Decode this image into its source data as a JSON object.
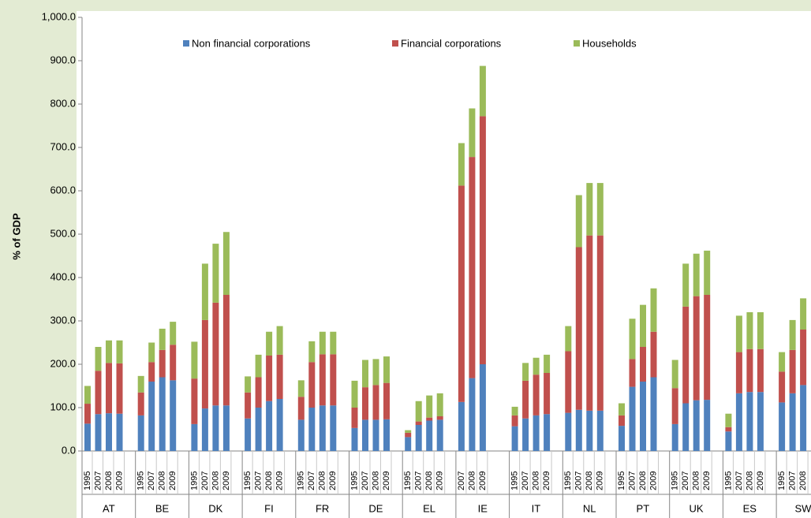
{
  "chart_data": {
    "type": "stacked_bar",
    "y_label": "% of GDP",
    "ylim": [
      0,
      1000
    ],
    "yticks": [
      {
        "value": 0,
        "label": "0.0"
      },
      {
        "value": 100,
        "label": "100.0"
      },
      {
        "value": 200,
        "label": "200.0"
      },
      {
        "value": 300,
        "label": "300.0"
      },
      {
        "value": 400,
        "label": "400.0"
      },
      {
        "value": 500,
        "label": "500.0"
      },
      {
        "value": 600,
        "label": "600.0"
      },
      {
        "value": 700,
        "label": "700.0"
      },
      {
        "value": 800,
        "label": "800.0"
      },
      {
        "value": 900,
        "label": "900.0"
      },
      {
        "value": 1000,
        "label": "1,000.0"
      }
    ],
    "groups": [
      {
        "name": "AT",
        "years": [
          "1995",
          "2007",
          "2008",
          "2009"
        ]
      },
      {
        "name": "BE",
        "years": [
          "1995",
          "2007",
          "2008",
          "2009"
        ]
      },
      {
        "name": "DK",
        "years": [
          "1995",
          "2007",
          "2008",
          "2009"
        ]
      },
      {
        "name": "FI",
        "years": [
          "1995",
          "2007",
          "2008",
          "2009"
        ]
      },
      {
        "name": "FR",
        "years": [
          "1995",
          "2007",
          "2008",
          "2009"
        ]
      },
      {
        "name": "DE",
        "years": [
          "1995",
          "2007",
          "2008",
          "2009"
        ]
      },
      {
        "name": "EL",
        "years": [
          "1995",
          "2007",
          "2008",
          "2009"
        ]
      },
      {
        "name": "IE",
        "years": [
          "2007",
          "2008",
          "2009"
        ]
      },
      {
        "name": "IT",
        "years": [
          "1995",
          "2007",
          "2008",
          "2009"
        ]
      },
      {
        "name": "NL",
        "years": [
          "1995",
          "2007",
          "2008",
          "2009"
        ]
      },
      {
        "name": "PT",
        "years": [
          "1995",
          "2007",
          "2008",
          "2009"
        ]
      },
      {
        "name": "UK",
        "years": [
          "1995",
          "2007",
          "2008",
          "2009"
        ]
      },
      {
        "name": "ES",
        "years": [
          "1995",
          "2007",
          "2008",
          "2009"
        ]
      },
      {
        "name": "SW",
        "years": [
          "1995",
          "2007",
          "2008"
        ]
      }
    ],
    "series": [
      {
        "name": "Non financial corporations",
        "color": "#4f81bd",
        "values": [
          63,
          85,
          87,
          86,
          82,
          160,
          170,
          163,
          62,
          98,
          105,
          105,
          75,
          100,
          115,
          120,
          72,
          100,
          105,
          105,
          53,
          72,
          72,
          73,
          32,
          60,
          70,
          72,
          113,
          168,
          200,
          57,
          75,
          82,
          85,
          88,
          95,
          93,
          93,
          58,
          148,
          160,
          170,
          62,
          110,
          117,
          118,
          45,
          133,
          136,
          136,
          112,
          133,
          152
        ]
      },
      {
        "name": "Financial corporations",
        "color": "#c0504d",
        "values": [
          46,
          100,
          116,
          116,
          53,
          45,
          63,
          82,
          105,
          204,
          237,
          255,
          60,
          70,
          105,
          102,
          53,
          105,
          118,
          118,
          47,
          75,
          80,
          84,
          10,
          8,
          7,
          8,
          499,
          510,
          572,
          25,
          87,
          94,
          95,
          142,
          375,
          404,
          404,
          24,
          64,
          80,
          105,
          83,
          223,
          240,
          242,
          10,
          95,
          99,
          99,
          71,
          100,
          128
        ]
      },
      {
        "name": "Households",
        "color": "#9bbb59",
        "values": [
          41,
          55,
          52,
          53,
          38,
          45,
          49,
          53,
          85,
          130,
          136,
          145,
          37,
          52,
          55,
          66,
          38,
          48,
          52,
          52,
          62,
          63,
          60,
          61,
          6,
          47,
          51,
          53,
          98,
          112,
          116,
          20,
          41,
          39,
          42,
          58,
          120,
          121,
          121,
          28,
          93,
          97,
          100,
          65,
          99,
          98,
          102,
          31,
          84,
          85,
          85,
          45,
          69,
          72
        ]
      }
    ]
  }
}
